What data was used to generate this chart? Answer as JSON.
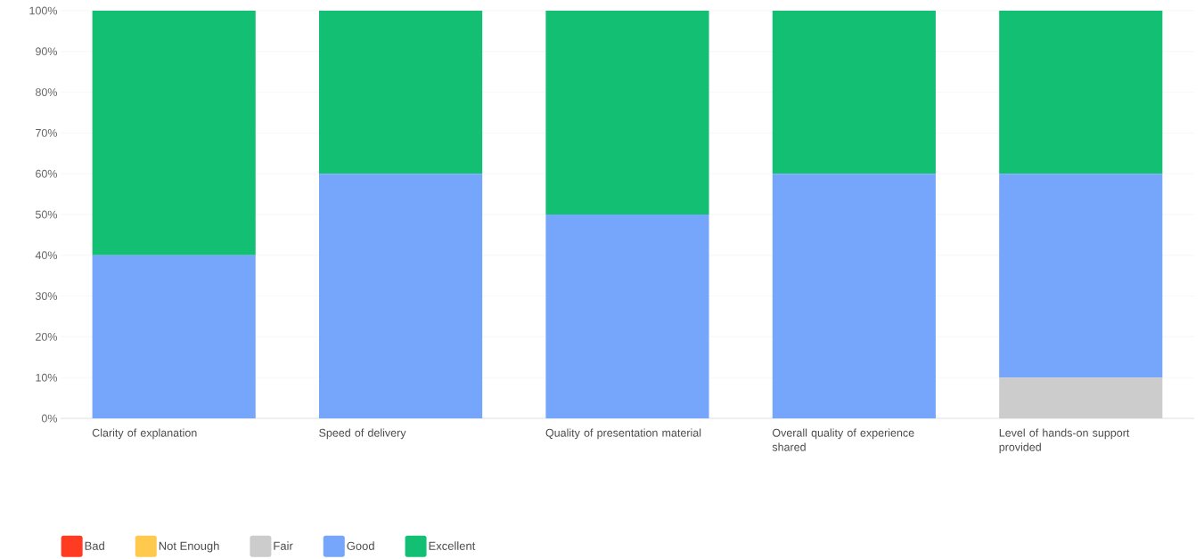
{
  "chart_data": {
    "type": "bar",
    "stacked": true,
    "categories": [
      "Clarity of explanation",
      "Speed of delivery",
      "Quality of presentation material",
      "Overall quality of experience shared",
      "Level of hands-on support provided"
    ],
    "series": [
      {
        "name": "Bad",
        "color": "#ff3b22",
        "values": [
          0,
          0,
          0,
          0,
          0
        ]
      },
      {
        "name": "Not Enough",
        "color": "#ffc94d",
        "values": [
          0,
          0,
          0,
          0,
          0
        ]
      },
      {
        "name": "Fair",
        "color": "#cccccc",
        "values": [
          0,
          0,
          0,
          0,
          10
        ]
      },
      {
        "name": "Good",
        "color": "#76a6fc",
        "values": [
          40,
          60,
          50,
          60,
          50
        ]
      },
      {
        "name": "Excellent",
        "color": "#13bf72",
        "values": [
          60,
          40,
          50,
          40,
          40
        ]
      }
    ],
    "ylim": [
      0,
      100
    ],
    "yticks": [
      {
        "value": 0,
        "label": "0%"
      },
      {
        "value": 10,
        "label": "10%"
      },
      {
        "value": 20,
        "label": "20%"
      },
      {
        "value": 30,
        "label": "30%"
      },
      {
        "value": 40,
        "label": "40%"
      },
      {
        "value": 50,
        "label": "50%"
      },
      {
        "value": 60,
        "label": "60%"
      },
      {
        "value": 70,
        "label": "70%"
      },
      {
        "value": 80,
        "label": "80%"
      },
      {
        "value": 90,
        "label": "90%"
      },
      {
        "value": 100,
        "label": "100%"
      }
    ],
    "grid": "y",
    "legend": "bottom"
  }
}
